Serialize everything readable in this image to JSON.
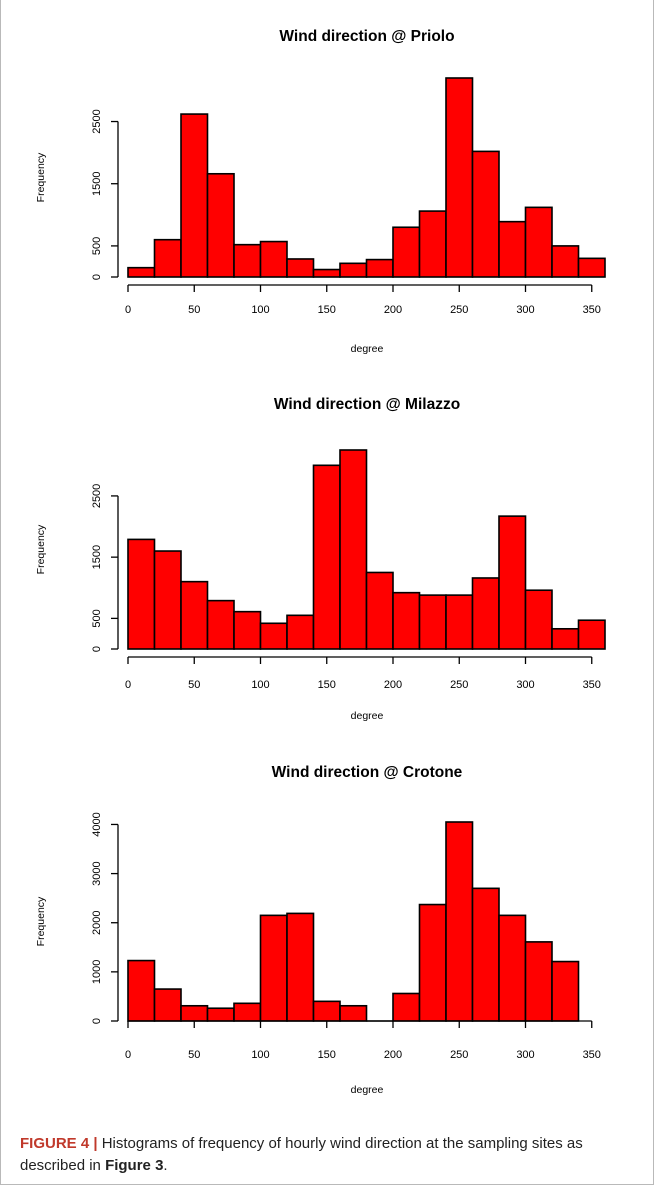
{
  "chart_data": [
    {
      "type": "bar",
      "title": "Wind direction @ Priolo",
      "xlabel": "degree",
      "ylabel": "Frequency",
      "bin_width": 20,
      "bin_start": 0,
      "values": [
        150,
        600,
        2620,
        1660,
        520,
        570,
        290,
        120,
        220,
        280,
        800,
        1060,
        3200,
        2020,
        890,
        1120,
        500,
        300
      ],
      "xlim": [
        0,
        360
      ],
      "ylim": [
        0,
        3200
      ],
      "xticks": [
        0,
        50,
        100,
        150,
        200,
        250,
        300,
        350
      ],
      "yticks": [
        0,
        500,
        1500,
        2500
      ]
    },
    {
      "type": "bar",
      "title": "Wind direction @ Milazzo",
      "xlabel": "degree",
      "ylabel": "Frequency",
      "bin_width": 20,
      "bin_start": 0,
      "values": [
        1790,
        1600,
        1100,
        790,
        610,
        420,
        550,
        3000,
        3250,
        1250,
        920,
        880,
        880,
        1160,
        2170,
        960,
        330,
        470
      ],
      "xlim": [
        0,
        360
      ],
      "ylim": [
        0,
        3250
      ],
      "xticks": [
        0,
        50,
        100,
        150,
        200,
        250,
        300,
        350
      ],
      "yticks": [
        0,
        500,
        1500,
        2500
      ]
    },
    {
      "type": "bar",
      "title": "Wind direction @ Crotone",
      "xlabel": "degree",
      "ylabel": "Frequency",
      "bin_width": 20,
      "bin_start": 0,
      "values": [
        1230,
        650,
        310,
        260,
        360,
        2150,
        2190,
        400,
        310,
        0,
        560,
        2370,
        4050,
        2700,
        2150,
        1610,
        1210
      ],
      "xlim": [
        0,
        350
      ],
      "ylim": [
        0,
        4050
      ],
      "xticks": [
        0,
        50,
        100,
        150,
        200,
        250,
        300,
        350
      ],
      "yticks": [
        0,
        1000,
        2000,
        3000,
        4000
      ]
    }
  ],
  "caption": {
    "label": "FIGURE 4 |",
    "text_before": " Histograms of frequency of hourly wind direction at the sampling sites as described in ",
    "ref": "Figure 3",
    "text_after": "."
  },
  "colors": {
    "bar_fill": "#ff0000",
    "bar_stroke": "#000000",
    "caption_label": "#c0392b"
  }
}
